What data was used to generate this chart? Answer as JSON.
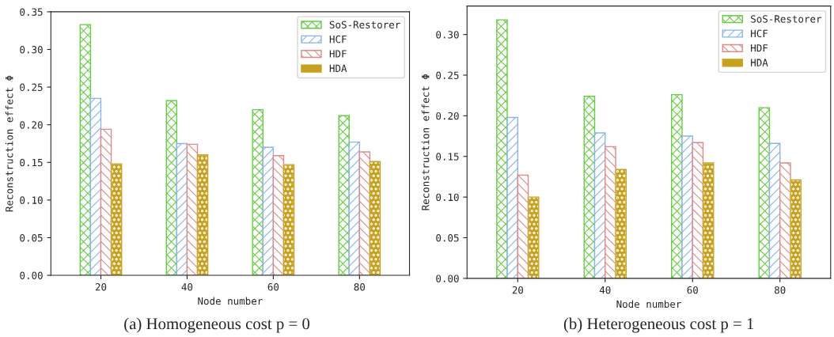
{
  "chart_data": [
    {
      "type": "bar",
      "categories": [
        "20",
        "40",
        "60",
        "80"
      ],
      "xlabel": "Node number",
      "ylabel": "Reconstruction effect Φ",
      "ylim": [
        0,
        0.35
      ],
      "yticks": [
        {
          "value": 0,
          "label": "0.00"
        },
        {
          "value": 0.05,
          "label": "0.05"
        },
        {
          "value": 0.1,
          "label": "0.10"
        },
        {
          "value": 0.15,
          "label": "0.15"
        },
        {
          "value": 0.2,
          "label": "0.20"
        },
        {
          "value": 0.25,
          "label": "0.25"
        },
        {
          "value": 0.3,
          "label": "0.30"
        },
        {
          "value": 0.35,
          "label": "0.35"
        }
      ],
      "legend": "top right",
      "grid": false,
      "series": [
        {
          "name": "SoS-Restorer",
          "color": "#66cc44",
          "values": [
            0.333,
            0.232,
            0.22,
            0.212
          ]
        },
        {
          "name": "HCF",
          "color": "#8ab4e8",
          "values": [
            0.235,
            0.175,
            0.17,
            0.177
          ]
        },
        {
          "name": "HDF",
          "color": "#e08888",
          "values": [
            0.194,
            0.174,
            0.159,
            0.164
          ]
        },
        {
          "name": "HDA",
          "color": "#c8a020",
          "values": [
            0.148,
            0.16,
            0.147,
            0.151
          ]
        }
      ],
      "annotations": [
        "(a) Homogeneous cost p = 0"
      ]
    },
    {
      "type": "bar",
      "categories": [
        "20",
        "40",
        "60",
        "80"
      ],
      "xlabel": "Node number",
      "ylabel": "Reconstruction effect Φ",
      "ylim": [
        0,
        0.335
      ],
      "yticks": [
        {
          "value": 0,
          "label": "0.00"
        },
        {
          "value": 0.05,
          "label": "0.05"
        },
        {
          "value": 0.1,
          "label": "0.10"
        },
        {
          "value": 0.15,
          "label": "0.15"
        },
        {
          "value": 0.2,
          "label": "0.20"
        },
        {
          "value": 0.25,
          "label": "0.25"
        },
        {
          "value": 0.3,
          "label": "0.30"
        }
      ],
      "legend": "top right",
      "grid": false,
      "series": [
        {
          "name": "SoS-Restorer",
          "color": "#66cc44",
          "values": [
            0.318,
            0.224,
            0.226,
            0.21
          ]
        },
        {
          "name": "HCF",
          "color": "#8ab4e8",
          "values": [
            0.198,
            0.179,
            0.175,
            0.166
          ]
        },
        {
          "name": "HDF",
          "color": "#e08888",
          "values": [
            0.127,
            0.162,
            0.167,
            0.142
          ]
        },
        {
          "name": "HDA",
          "color": "#c8a020",
          "values": [
            0.1,
            0.134,
            0.142,
            0.121
          ]
        }
      ],
      "annotations": [
        "(b) Heterogeneous cost p = 1"
      ]
    }
  ]
}
